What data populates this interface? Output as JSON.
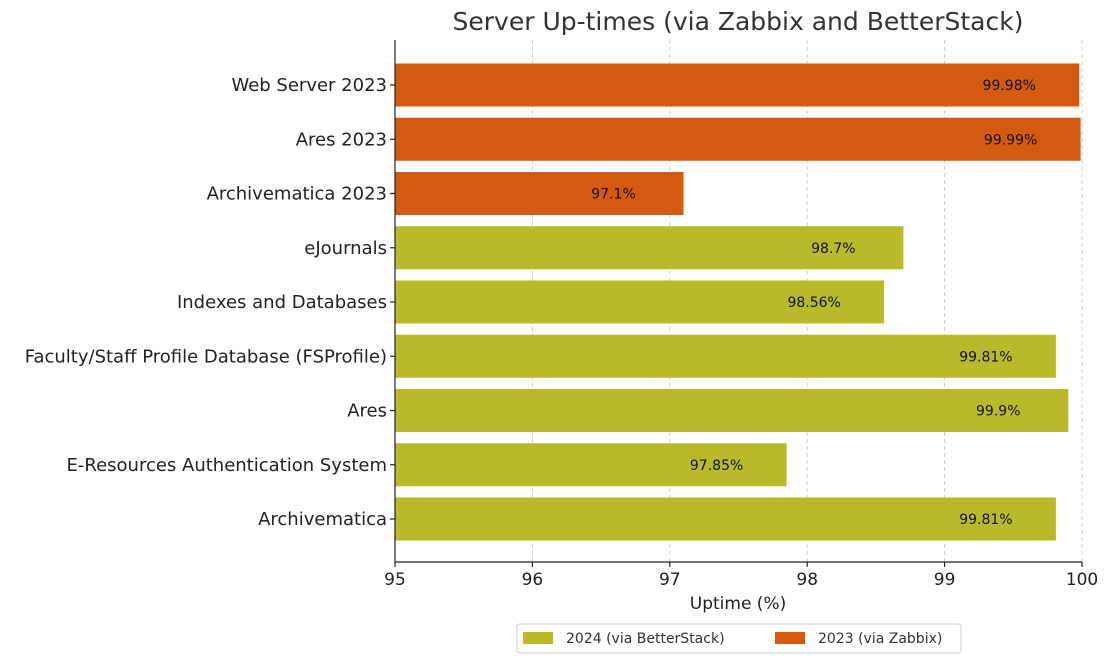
{
  "chart_data": {
    "type": "bar",
    "orientation": "horizontal",
    "title": "Server Up-times (via Zabbix and BetterStack)",
    "xlabel": "Uptime (%)",
    "ylabel": "",
    "xlim": [
      95,
      100
    ],
    "xticks": [
      95,
      96,
      97,
      98,
      99,
      100
    ],
    "grid": true,
    "legend_position": "bottom-center",
    "series": [
      {
        "name": "2024 (via BetterStack)",
        "color": "#b8ba29"
      },
      {
        "name": "2023 (via Zabbix)",
        "color": "#d35a0f"
      }
    ],
    "bars": [
      {
        "category": "Web Server 2023",
        "value": 99.98,
        "label": "99.98%",
        "series": 1
      },
      {
        "category": "Ares 2023",
        "value": 99.99,
        "label": "99.99%",
        "series": 1
      },
      {
        "category": "Archivematica 2023",
        "value": 97.1,
        "label": "97.1%",
        "series": 1
      },
      {
        "category": "eJournals",
        "value": 98.7,
        "label": "98.7%",
        "series": 0
      },
      {
        "category": "Indexes and Databases",
        "value": 98.56,
        "label": "98.56%",
        "series": 0
      },
      {
        "category": "Faculty/Staff Profile Database (FSProfile)",
        "value": 99.81,
        "label": "99.81%",
        "series": 0
      },
      {
        "category": "Ares",
        "value": 99.9,
        "label": "99.9%",
        "series": 0
      },
      {
        "category": "E-Resources Authentication System",
        "value": 97.85,
        "label": "97.85%",
        "series": 0
      },
      {
        "category": "Archivematica",
        "value": 99.81,
        "label": "99.81%",
        "series": 0
      }
    ]
  }
}
